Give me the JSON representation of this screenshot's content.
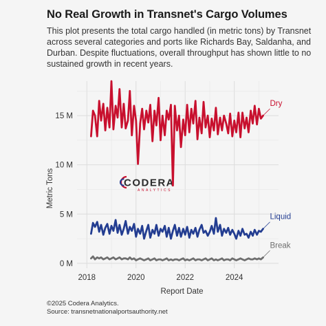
{
  "title": "No Real Growth in Transnet's Cargo Volumes",
  "subtitle": "This plot presents the total cargo handled (in metric tons) by Transnet across several categories and ports like Richards Bay, Saldanha, and Durban. Despite fluctuations, overall throughput has shown little to no sustained growth in recent years.",
  "caption": {
    "line1": "©2025 Codera Analytics.",
    "line2": "Source: transnetnationalportsauthority.net"
  },
  "logo": {
    "name": "CODERA",
    "tagline": "ANALYTICS"
  },
  "chart_data": {
    "type": "line",
    "xlabel": "Report Date",
    "ylabel": "Metric Tons",
    "xlim": [
      2017.6,
      2025.8
    ],
    "ylim": [
      -0.5,
      18.5
    ],
    "x_ticks": [
      2018,
      2020,
      2022,
      2024
    ],
    "x_tick_labels": [
      "2018",
      "2020",
      "2022",
      "2024"
    ],
    "y_ticks": [
      0,
      5,
      10,
      15
    ],
    "y_tick_labels": [
      "0 M",
      "5 M",
      "10 M",
      "15 M"
    ],
    "grid": true,
    "legend": "direct labels at line ends",
    "value_units": "millions of metric tons",
    "series": [
      {
        "name": "Dry",
        "color": "#c8102e",
        "x": [
          2018.17,
          2018.25,
          2018.33,
          2018.42,
          2018.5,
          2018.58,
          2018.67,
          2018.75,
          2018.83,
          2018.92,
          2019.0,
          2019.08,
          2019.17,
          2019.25,
          2019.33,
          2019.42,
          2019.5,
          2019.58,
          2019.67,
          2019.75,
          2019.83,
          2019.92,
          2020.0,
          2020.08,
          2020.17,
          2020.25,
          2020.33,
          2020.42,
          2020.5,
          2020.58,
          2020.67,
          2020.75,
          2020.83,
          2020.92,
          2021.0,
          2021.08,
          2021.17,
          2021.25,
          2021.33,
          2021.42,
          2021.5,
          2021.58,
          2021.67,
          2021.75,
          2021.83,
          2021.92,
          2022.0,
          2022.08,
          2022.17,
          2022.25,
          2022.33,
          2022.42,
          2022.5,
          2022.58,
          2022.67,
          2022.75,
          2022.83,
          2022.92,
          2023.0,
          2023.08,
          2023.17,
          2023.25,
          2023.33,
          2023.42,
          2023.5,
          2023.58,
          2023.67,
          2023.75,
          2023.83,
          2023.92,
          2024.0,
          2024.08,
          2024.17,
          2024.25,
          2024.33,
          2024.42,
          2024.5,
          2024.58,
          2024.67,
          2024.75,
          2024.83,
          2024.92,
          2025.0,
          2025.08,
          2025.17
        ],
        "values": [
          12.9,
          15.5,
          15.0,
          12.9,
          16.5,
          14.5,
          16.2,
          13.5,
          15.8,
          13.8,
          18.5,
          13.6,
          16.0,
          14.8,
          17.7,
          13.8,
          16.2,
          13.7,
          14.5,
          17.5,
          13.0,
          16.0,
          14.5,
          10.1,
          14.2,
          15.7,
          13.6,
          15.5,
          14.3,
          16.1,
          12.4,
          15.5,
          14.0,
          16.8,
          12.5,
          15.0,
          13.0,
          15.5,
          14.6,
          16.1,
          7.9,
          16.0,
          13.5,
          15.0,
          11.8,
          14.6,
          13.0,
          16.1,
          13.3,
          15.7,
          14.2,
          16.5,
          12.6,
          14.8,
          13.2,
          16.4,
          13.8,
          15.0,
          12.8,
          14.7,
          13.5,
          15.8,
          13.1,
          14.8,
          13.5,
          15.0,
          14.2,
          13.2,
          15.2,
          12.9,
          14.5,
          13.3,
          15.3,
          12.8,
          15.3,
          13.7,
          14.8,
          13.3,
          15.5,
          14.2,
          16.0,
          14.1,
          15.7,
          14.7,
          15.0
        ]
      },
      {
        "name": "Liquid",
        "color": "#233d91",
        "x": [
          2018.17,
          2018.25,
          2018.33,
          2018.42,
          2018.5,
          2018.58,
          2018.67,
          2018.75,
          2018.83,
          2018.92,
          2019.0,
          2019.08,
          2019.17,
          2019.25,
          2019.33,
          2019.42,
          2019.5,
          2019.58,
          2019.67,
          2019.75,
          2019.83,
          2019.92,
          2020.0,
          2020.08,
          2020.17,
          2020.25,
          2020.33,
          2020.42,
          2020.5,
          2020.58,
          2020.67,
          2020.75,
          2020.83,
          2020.92,
          2021.0,
          2021.08,
          2021.17,
          2021.25,
          2021.33,
          2021.42,
          2021.5,
          2021.58,
          2021.67,
          2021.75,
          2021.83,
          2021.92,
          2022.0,
          2022.08,
          2022.17,
          2022.25,
          2022.33,
          2022.42,
          2022.5,
          2022.58,
          2022.67,
          2022.75,
          2022.83,
          2022.92,
          2023.0,
          2023.08,
          2023.17,
          2023.25,
          2023.33,
          2023.42,
          2023.5,
          2023.58,
          2023.67,
          2023.75,
          2023.83,
          2023.92,
          2024.0,
          2024.08,
          2024.17,
          2024.25,
          2024.33,
          2024.42,
          2024.5,
          2024.58,
          2024.67,
          2024.75,
          2024.83,
          2024.92,
          2025.0,
          2025.08,
          2025.17
        ],
        "values": [
          3.0,
          4.1,
          3.7,
          4.2,
          3.2,
          3.9,
          2.9,
          3.6,
          4.0,
          3.0,
          3.8,
          3.3,
          4.4,
          3.1,
          3.9,
          2.9,
          3.5,
          4.3,
          3.0,
          3.7,
          3.3,
          4.0,
          2.7,
          3.5,
          3.0,
          3.8,
          2.5,
          3.3,
          3.9,
          2.6,
          3.4,
          3.0,
          3.9,
          2.8,
          3.5,
          3.2,
          3.8,
          2.7,
          3.6,
          2.5,
          3.3,
          3.9,
          2.8,
          3.6,
          2.7,
          3.5,
          2.9,
          3.7,
          2.6,
          3.4,
          3.0,
          3.6,
          2.7,
          3.4,
          3.9,
          3.1,
          3.3,
          2.8,
          3.2,
          3.8,
          3.0,
          4.6,
          3.2,
          3.9,
          2.8,
          3.5,
          3.1,
          3.6,
          2.9,
          3.4,
          3.0,
          2.5,
          3.3,
          2.8,
          3.5,
          2.9,
          3.0,
          2.6,
          3.2,
          2.8,
          3.4,
          2.9,
          3.3,
          3.2,
          3.5
        ]
      },
      {
        "name": "Break",
        "color": "#6e6e6e",
        "x": [
          2018.17,
          2018.25,
          2018.33,
          2018.42,
          2018.5,
          2018.58,
          2018.67,
          2018.75,
          2018.83,
          2018.92,
          2019.0,
          2019.08,
          2019.17,
          2019.25,
          2019.33,
          2019.42,
          2019.5,
          2019.58,
          2019.67,
          2019.75,
          2019.83,
          2019.92,
          2020.0,
          2020.08,
          2020.17,
          2020.25,
          2020.33,
          2020.42,
          2020.5,
          2020.58,
          2020.67,
          2020.75,
          2020.83,
          2020.92,
          2021.0,
          2021.08,
          2021.17,
          2021.25,
          2021.33,
          2021.42,
          2021.5,
          2021.58,
          2021.67,
          2021.75,
          2021.83,
          2021.92,
          2022.0,
          2022.08,
          2022.17,
          2022.25,
          2022.33,
          2022.42,
          2022.5,
          2022.58,
          2022.67,
          2022.75,
          2022.83,
          2022.92,
          2023.0,
          2023.08,
          2023.17,
          2023.25,
          2023.33,
          2023.42,
          2023.5,
          2023.58,
          2023.67,
          2023.75,
          2023.83,
          2023.92,
          2024.0,
          2024.08,
          2024.17,
          2024.25,
          2024.33,
          2024.42,
          2024.5,
          2024.58,
          2024.67,
          2024.75,
          2024.83,
          2024.92,
          2025.0,
          2025.08,
          2025.17
        ],
        "values": [
          0.5,
          0.7,
          0.4,
          0.6,
          0.5,
          0.6,
          0.4,
          0.5,
          0.6,
          0.4,
          0.5,
          0.6,
          0.4,
          0.5,
          0.6,
          0.4,
          0.5,
          0.5,
          0.4,
          0.6,
          0.4,
          0.5,
          0.3,
          0.4,
          0.5,
          0.4,
          0.3,
          0.4,
          0.5,
          0.3,
          0.4,
          0.5,
          0.3,
          0.4,
          0.4,
          0.3,
          0.4,
          0.5,
          0.3,
          0.4,
          0.3,
          0.4,
          0.4,
          0.3,
          0.4,
          0.5,
          0.3,
          0.4,
          0.3,
          0.4,
          0.5,
          0.3,
          0.4,
          0.4,
          0.3,
          0.4,
          0.5,
          0.3,
          0.4,
          0.5,
          0.3,
          0.4,
          0.3,
          0.4,
          0.5,
          0.3,
          0.4,
          0.4,
          0.3,
          0.5,
          0.4,
          0.3,
          0.4,
          0.5,
          0.4,
          0.3,
          0.4,
          0.5,
          0.4,
          0.4,
          0.5,
          0.4,
          0.5,
          0.4,
          0.6
        ]
      }
    ]
  }
}
